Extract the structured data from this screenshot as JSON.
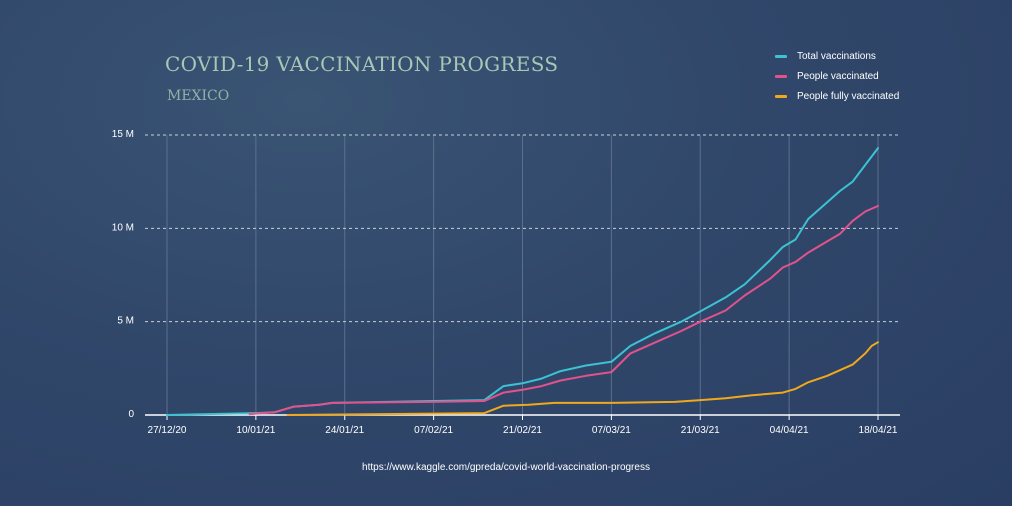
{
  "header": {
    "title": "COVID-19 VACCINATION PROGRESS",
    "subtitle": "MEXICO"
  },
  "footer": {
    "source": "https://www.kaggle.com/gpreda/covid-world-vaccination-progress"
  },
  "colors": {
    "total": "#3cc2d2",
    "people": "#e3528a",
    "fully": "#f0a81c",
    "grid_h": "#c8d0dc",
    "grid_v": "#5b708d",
    "axis": "#ffffff"
  },
  "chart_data": {
    "type": "line",
    "title": "COVID-19 VACCINATION PROGRESS",
    "subtitle": "MEXICO",
    "xlabel": "",
    "ylabel": "",
    "ylim": [
      0,
      15000000
    ],
    "xlim": [
      "2020-12-27",
      "2021-04-18"
    ],
    "x_ticks": [
      {
        "date": "2020-12-27",
        "label": "27/12/20"
      },
      {
        "date": "2021-01-10",
        "label": "10/01/21"
      },
      {
        "date": "2021-01-24",
        "label": "24/01/21"
      },
      {
        "date": "2021-02-07",
        "label": "07/02/21"
      },
      {
        "date": "2021-02-21",
        "label": "21/02/21"
      },
      {
        "date": "2021-03-07",
        "label": "07/03/21"
      },
      {
        "date": "2021-03-21",
        "label": "21/03/21"
      },
      {
        "date": "2021-04-04",
        "label": "04/04/21"
      },
      {
        "date": "2021-04-18",
        "label": "18/04/21"
      }
    ],
    "y_ticks": [
      {
        "value": 0,
        "label": "0"
      },
      {
        "value": 5000000,
        "label": "5 M"
      },
      {
        "value": 10000000,
        "label": "10 M"
      },
      {
        "value": 15000000,
        "label": "15 M"
      }
    ],
    "grid": true,
    "legend_position": "top-right",
    "series": [
      {
        "name": "Total vaccinations",
        "color": "#3cc2d2",
        "points": [
          [
            "2020-12-27",
            0
          ],
          [
            "2021-01-10",
            100000
          ],
          [
            "2021-01-13",
            150000
          ],
          [
            "2021-01-16",
            450000
          ],
          [
            "2021-01-20",
            550000
          ],
          [
            "2021-01-22",
            650000
          ],
          [
            "2021-02-07",
            750000
          ],
          [
            "2021-02-15",
            800000
          ],
          [
            "2021-02-18",
            1550000
          ],
          [
            "2021-02-21",
            1700000
          ],
          [
            "2021-02-24",
            1950000
          ],
          [
            "2021-02-27",
            2350000
          ],
          [
            "2021-03-03",
            2650000
          ],
          [
            "2021-03-07",
            2850000
          ],
          [
            "2021-03-10",
            3700000
          ],
          [
            "2021-03-14",
            4400000
          ],
          [
            "2021-03-18",
            5000000
          ],
          [
            "2021-03-21",
            5550000
          ],
          [
            "2021-03-25",
            6300000
          ],
          [
            "2021-03-28",
            7000000
          ],
          [
            "2021-04-01",
            8300000
          ],
          [
            "2021-04-03",
            9000000
          ],
          [
            "2021-04-05",
            9400000
          ],
          [
            "2021-04-07",
            10500000
          ],
          [
            "2021-04-10",
            11400000
          ],
          [
            "2021-04-12",
            12000000
          ],
          [
            "2021-04-14",
            12500000
          ],
          [
            "2021-04-16",
            13400000
          ],
          [
            "2021-04-18",
            14300000
          ]
        ]
      },
      {
        "name": "People vaccinated",
        "color": "#e3528a",
        "points": [
          [
            "2021-01-09",
            50000
          ],
          [
            "2021-01-13",
            150000
          ],
          [
            "2021-01-16",
            450000
          ],
          [
            "2021-01-20",
            550000
          ],
          [
            "2021-01-22",
            650000
          ],
          [
            "2021-02-07",
            700000
          ],
          [
            "2021-02-15",
            750000
          ],
          [
            "2021-02-18",
            1200000
          ],
          [
            "2021-02-21",
            1350000
          ],
          [
            "2021-02-24",
            1550000
          ],
          [
            "2021-02-27",
            1850000
          ],
          [
            "2021-03-03",
            2100000
          ],
          [
            "2021-03-07",
            2300000
          ],
          [
            "2021-03-10",
            3300000
          ],
          [
            "2021-03-14",
            3900000
          ],
          [
            "2021-03-18",
            4500000
          ],
          [
            "2021-03-21",
            5000000
          ],
          [
            "2021-03-25",
            5600000
          ],
          [
            "2021-03-28",
            6400000
          ],
          [
            "2021-04-01",
            7300000
          ],
          [
            "2021-04-03",
            7900000
          ],
          [
            "2021-04-05",
            8200000
          ],
          [
            "2021-04-07",
            8700000
          ],
          [
            "2021-04-10",
            9300000
          ],
          [
            "2021-04-12",
            9700000
          ],
          [
            "2021-04-14",
            10400000
          ],
          [
            "2021-04-16",
            10900000
          ],
          [
            "2021-04-18",
            11200000
          ]
        ]
      },
      {
        "name": "People fully vaccinated",
        "color": "#f0a81c",
        "points": [
          [
            "2021-01-15",
            0
          ],
          [
            "2021-02-15",
            100000
          ],
          [
            "2021-02-18",
            500000
          ],
          [
            "2021-02-22",
            550000
          ],
          [
            "2021-02-26",
            650000
          ],
          [
            "2021-03-07",
            650000
          ],
          [
            "2021-03-17",
            700000
          ],
          [
            "2021-03-21",
            800000
          ],
          [
            "2021-03-25",
            900000
          ],
          [
            "2021-03-29",
            1050000
          ],
          [
            "2021-04-03",
            1200000
          ],
          [
            "2021-04-05",
            1400000
          ],
          [
            "2021-04-07",
            1750000
          ],
          [
            "2021-04-10",
            2100000
          ],
          [
            "2021-04-12",
            2400000
          ],
          [
            "2021-04-14",
            2700000
          ],
          [
            "2021-04-16",
            3300000
          ],
          [
            "2021-04-17",
            3700000
          ],
          [
            "2021-04-18",
            3900000
          ]
        ]
      }
    ]
  }
}
